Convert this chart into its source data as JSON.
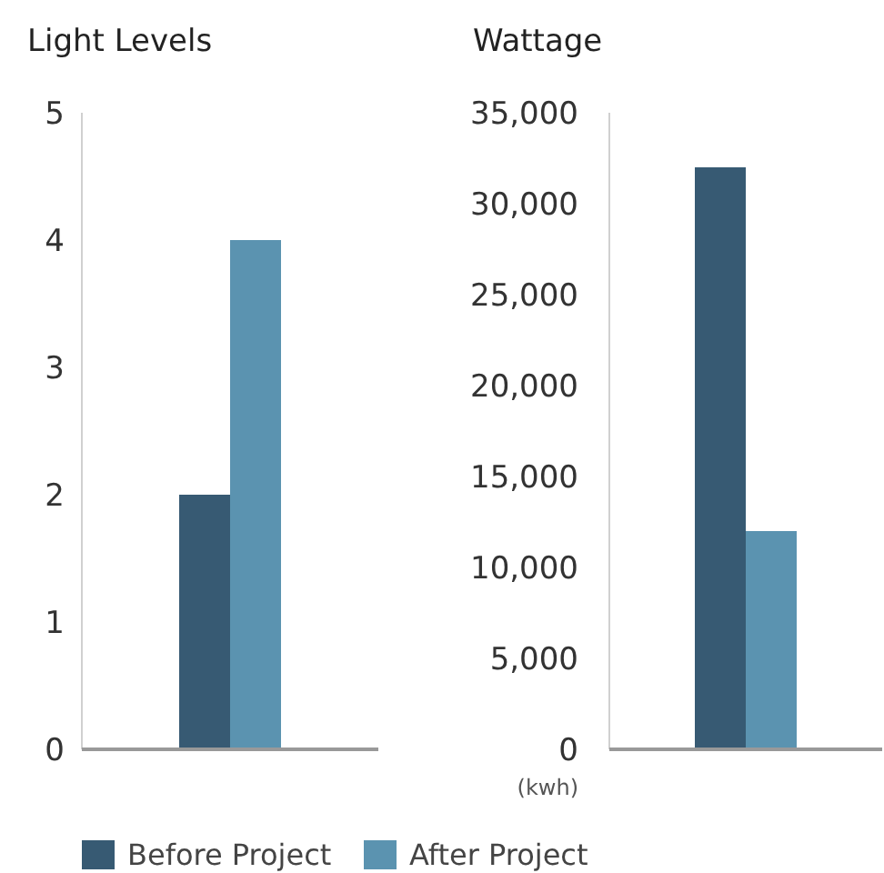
{
  "chart_data": [
    {
      "type": "bar",
      "title": "Light Levels",
      "categories": [
        null
      ],
      "series": [
        {
          "name": "Before Project",
          "color": "#375a73",
          "values": [
            2
          ]
        },
        {
          "name": "After Project",
          "color": "#5b93b0",
          "values": [
            4
          ]
        }
      ],
      "ylim": [
        0,
        5
      ],
      "yticks": [
        0,
        1,
        2,
        3,
        4,
        5
      ],
      "grid": false,
      "legend": "bottom"
    },
    {
      "type": "bar",
      "title": "Wattage",
      "ylabel": "(kwh)",
      "categories": [
        null
      ],
      "series": [
        {
          "color": "#375a73",
          "values": [
            32000
          ]
        },
        {
          "color": "#5b93b0",
          "values": [
            12000
          ]
        }
      ],
      "ylim": [
        0,
        35000
      ],
      "yticks": [
        {
          "value": 0,
          "label": "0"
        },
        {
          "value": 5000,
          "label": "5,000"
        },
        {
          "value": 10000,
          "label": "10,000"
        },
        {
          "value": 15000,
          "label": "15,000"
        },
        {
          "value": 20000,
          "label": "20,000"
        },
        {
          "value": 25000,
          "label": "25,000"
        },
        {
          "value": 30000,
          "label": "30,000"
        },
        {
          "value": 35000,
          "label": "35,000"
        }
      ],
      "grid": false,
      "legend": false
    }
  ]
}
